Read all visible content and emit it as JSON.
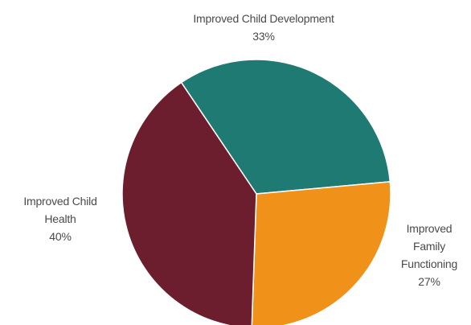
{
  "chart_data": {
    "type": "pie",
    "slices": [
      {
        "label_lines": [
          "Improved Child Development"
        ],
        "value": 33,
        "value_label": "33%",
        "color": "#1f7a74"
      },
      {
        "label_lines": [
          "Improved",
          "Family",
          "Functioning"
        ],
        "value": 27,
        "value_label": "27%",
        "color": "#f0911a"
      },
      {
        "label_lines": [
          "Improved Child",
          "Health"
        ],
        "value": 40,
        "value_label": "40%",
        "color": "#6c1d2e"
      }
    ],
    "start_angle_deg": -34,
    "legend": "none"
  }
}
